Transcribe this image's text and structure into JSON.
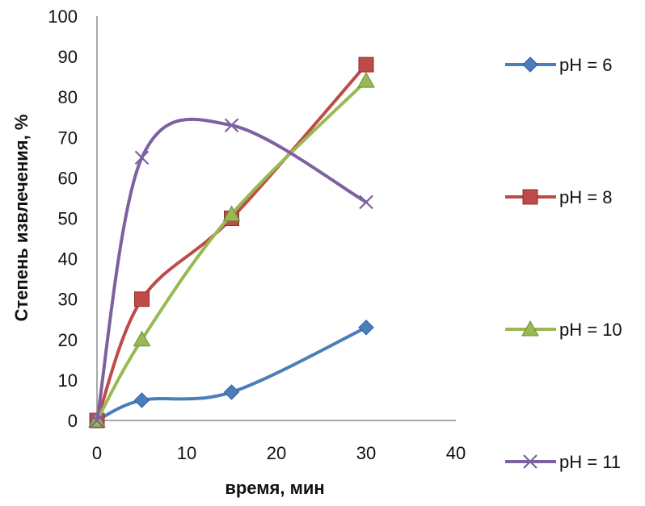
{
  "chart_data": {
    "type": "line",
    "title": "",
    "xlabel": "время, мин",
    "ylabel": "Степень извлечения, %",
    "xlim": [
      0,
      40
    ],
    "ylim": [
      0,
      100
    ],
    "x_ticks": [
      0,
      10,
      20,
      30,
      40
    ],
    "y_ticks": [
      0,
      10,
      20,
      30,
      40,
      50,
      60,
      70,
      80,
      90,
      100
    ],
    "grid": false,
    "smooth": true,
    "legend_position": "right",
    "x": [
      0,
      5,
      15,
      30
    ],
    "series": [
      {
        "name": "pH = 6",
        "values": [
          0,
          5,
          7,
          23
        ],
        "color": "#4A7EBB",
        "marker": "diamond"
      },
      {
        "name": "pH = 8",
        "values": [
          0,
          30,
          50,
          88
        ],
        "color": "#BE4B48",
        "marker": "square"
      },
      {
        "name": "pH = 10",
        "values": [
          0,
          20,
          51,
          84
        ],
        "color": "#98B954",
        "marker": "triangle"
      },
      {
        "name": "pH = 11",
        "values": [
          0,
          65,
          73,
          54
        ],
        "color": "#7D60A0",
        "marker": "x"
      }
    ]
  }
}
